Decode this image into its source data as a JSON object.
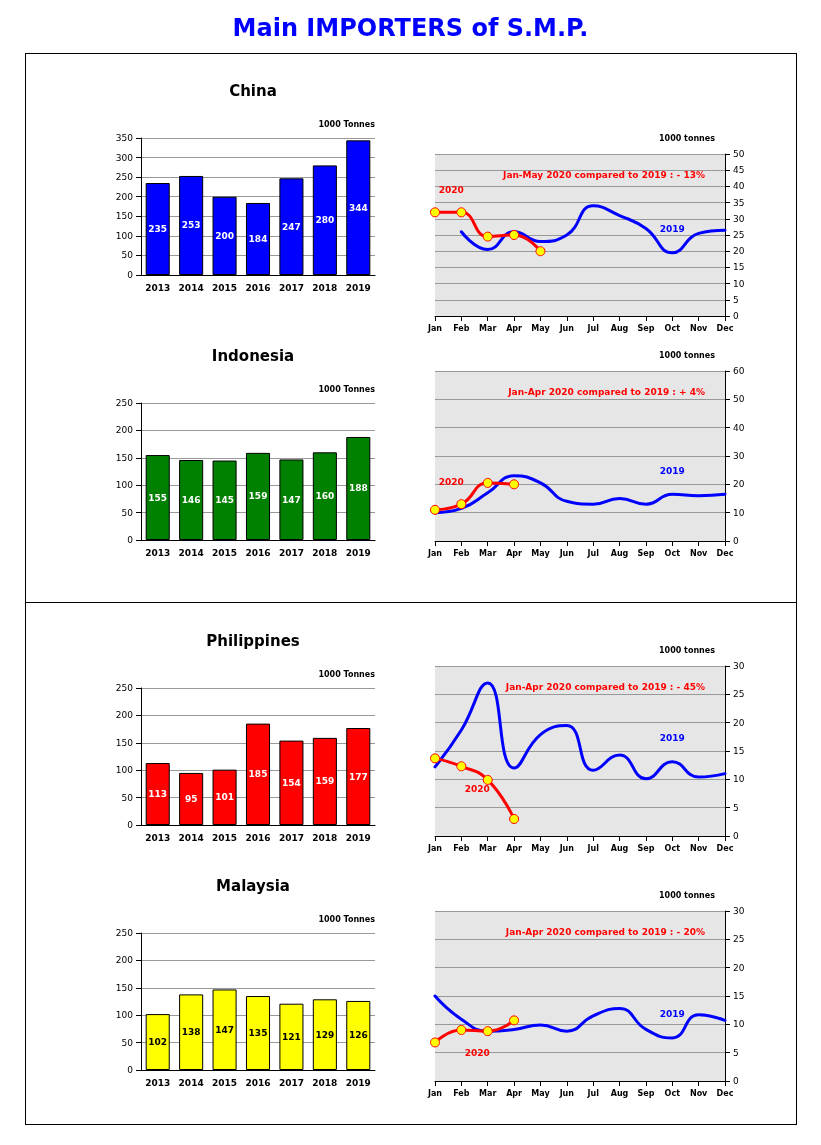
{
  "chart_data": [
    {
      "type": "other",
      "title": "Main IMPORTERS of S.M.P."
    },
    {
      "type": "bar",
      "title": "China",
      "ylabel": "1000 Tonnes",
      "categories": [
        "2013",
        "2014",
        "2015",
        "2016",
        "2017",
        "2018",
        "2019"
      ],
      "values": [
        235,
        253,
        200,
        184,
        247,
        280,
        344
      ],
      "color": "#0000ff",
      "ylim": [
        0,
        350
      ],
      "yticks": [
        0,
        50,
        100,
        150,
        200,
        250,
        300,
        350
      ],
      "grid": "y",
      "data_labels": true,
      "legend": false
    },
    {
      "type": "line",
      "y2label": "1000 tonnes",
      "categories": [
        "Jan",
        "Feb",
        "Mar",
        "Apr",
        "May",
        "Jun",
        "Jul",
        "Aug",
        "Sep",
        "Oct",
        "Nov",
        "Dec"
      ],
      "y2lim": [
        0,
        50
      ],
      "y2ticks": [
        0,
        5,
        10,
        15,
        20,
        25,
        30,
        35,
        40,
        45,
        50
      ],
      "grid": "y",
      "legend": false,
      "annotations": [
        "Jan-May 2020 compared to 2019 : - 13%"
      ],
      "series": [
        {
          "name": "2019",
          "color": "#0000ff",
          "axis": "y2",
          "marker": "none",
          "values": [
            null,
            26,
            20.5,
            26,
            23,
            25,
            34,
            31,
            27,
            19.5,
            25.5,
            26.5
          ]
        },
        {
          "name": "2020",
          "color": "#ff0000",
          "axis": "y2",
          "marker": "circle",
          "values": [
            32,
            32,
            24.5,
            25,
            20,
            null,
            null,
            null,
            null,
            null,
            null,
            null
          ]
        }
      ]
    },
    {
      "type": "bar",
      "title": "Indonesia",
      "ylabel": "1000 Tonnes",
      "categories": [
        "2013",
        "2014",
        "2015",
        "2016",
        "2017",
        "2018",
        "2019"
      ],
      "values": [
        155,
        146,
        145,
        159,
        147,
        160,
        188
      ],
      "color": "#008000",
      "ylim": [
        0,
        250
      ],
      "yticks": [
        0,
        50,
        100,
        150,
        200,
        250
      ],
      "grid": "y",
      "data_labels": true,
      "legend": false
    },
    {
      "type": "line",
      "y2label": "1000 tonnes",
      "categories": [
        "Jan",
        "Feb",
        "Mar",
        "Apr",
        "May",
        "Jun",
        "Jul",
        "Aug",
        "Sep",
        "Oct",
        "Nov",
        "Dec"
      ],
      "y2lim": [
        0,
        60
      ],
      "y2ticks": [
        0,
        10,
        20,
        30,
        40,
        50,
        60
      ],
      "grid": "y",
      "legend": false,
      "annotations": [
        "Jan-Apr 2020 compared to 2019 : + 4%"
      ],
      "series": [
        {
          "name": "2019",
          "color": "#0000ff",
          "axis": "y2",
          "marker": "none",
          "values": [
            10,
            11.5,
            17,
            23,
            20.5,
            14,
            13,
            15,
            13,
            16.5,
            16,
            16.5
          ]
        },
        {
          "name": "2020",
          "color": "#ff0000",
          "axis": "y2",
          "marker": "circle",
          "values": [
            11,
            13,
            20.5,
            20,
            null,
            null,
            null,
            null,
            null,
            null,
            null,
            null
          ]
        }
      ]
    },
    {
      "type": "bar",
      "title": "Philippines",
      "ylabel": "1000 Tonnes",
      "categories": [
        "2013",
        "2014",
        "2015",
        "2016",
        "2017",
        "2018",
        "2019"
      ],
      "values": [
        113,
        95,
        101,
        185,
        154,
        159,
        177
      ],
      "color": "#ff0000",
      "ylim": [
        0,
        250
      ],
      "yticks": [
        0,
        50,
        100,
        150,
        200,
        250
      ],
      "grid": "y",
      "data_labels": true,
      "legend": false
    },
    {
      "type": "line",
      "y2label": "1000 tonnes",
      "categories": [
        "Jan",
        "Feb",
        "Mar",
        "Apr",
        "May",
        "Jun",
        "Jul",
        "Aug",
        "Sep",
        "Oct",
        "Nov",
        "Dec"
      ],
      "y2lim": [
        0,
        30
      ],
      "y2ticks": [
        0,
        5,
        10,
        15,
        20,
        25,
        30
      ],
      "grid": "y",
      "legend": false,
      "annotations": [
        "Jan-Apr 2020 compared to 2019 : - 45%"
      ],
      "series": [
        {
          "name": "2019",
          "color": "#0000ff",
          "axis": "y2",
          "marker": "none",
          "values": [
            12.2,
            18.7,
            27,
            12,
            17.9,
            19.5,
            11.6,
            14.3,
            10.1,
            13.1,
            10.4,
            11
          ]
        },
        {
          "name": "2020",
          "color": "#ff0000",
          "axis": "y2",
          "marker": "circle",
          "values": [
            13.7,
            12.3,
            9.9,
            3,
            null,
            null,
            null,
            null,
            null,
            null,
            null,
            null
          ]
        }
      ]
    },
    {
      "type": "bar",
      "title": "Malaysia",
      "ylabel": "1000 Tonnes",
      "categories": [
        "2013",
        "2014",
        "2015",
        "2016",
        "2017",
        "2018",
        "2019"
      ],
      "values": [
        102,
        138,
        147,
        135,
        121,
        129,
        126
      ],
      "color": "#ffff00",
      "ylim": [
        0,
        250
      ],
      "yticks": [
        0,
        50,
        100,
        150,
        200,
        250
      ],
      "grid": "y",
      "data_labels": true,
      "legend": false
    },
    {
      "type": "line",
      "y2label": "1000 tonnes",
      "categories": [
        "Jan",
        "Feb",
        "Mar",
        "Apr",
        "May",
        "Jun",
        "Jul",
        "Aug",
        "Sep",
        "Oct",
        "Nov",
        "Dec"
      ],
      "y2lim": [
        0,
        30
      ],
      "y2ticks": [
        0,
        5,
        10,
        15,
        20,
        25,
        30
      ],
      "grid": "y",
      "legend": false,
      "annotations": [
        "Jan-Apr 2020 compared to 2019 : - 20%"
      ],
      "series": [
        {
          "name": "2019",
          "color": "#0000ff",
          "axis": "y2",
          "marker": "none",
          "values": [
            15,
            10.9,
            8.8,
            9.1,
            9.9,
            8.8,
            11.5,
            12.8,
            9.1,
            7.6,
            11.7,
            10.7
          ]
        },
        {
          "name": "2020",
          "color": "#ff0000",
          "axis": "y2",
          "marker": "circle",
          "values": [
            6.8,
            9,
            8.8,
            10.7,
            null,
            null,
            null,
            null,
            null,
            null,
            null,
            null
          ]
        }
      ]
    }
  ]
}
